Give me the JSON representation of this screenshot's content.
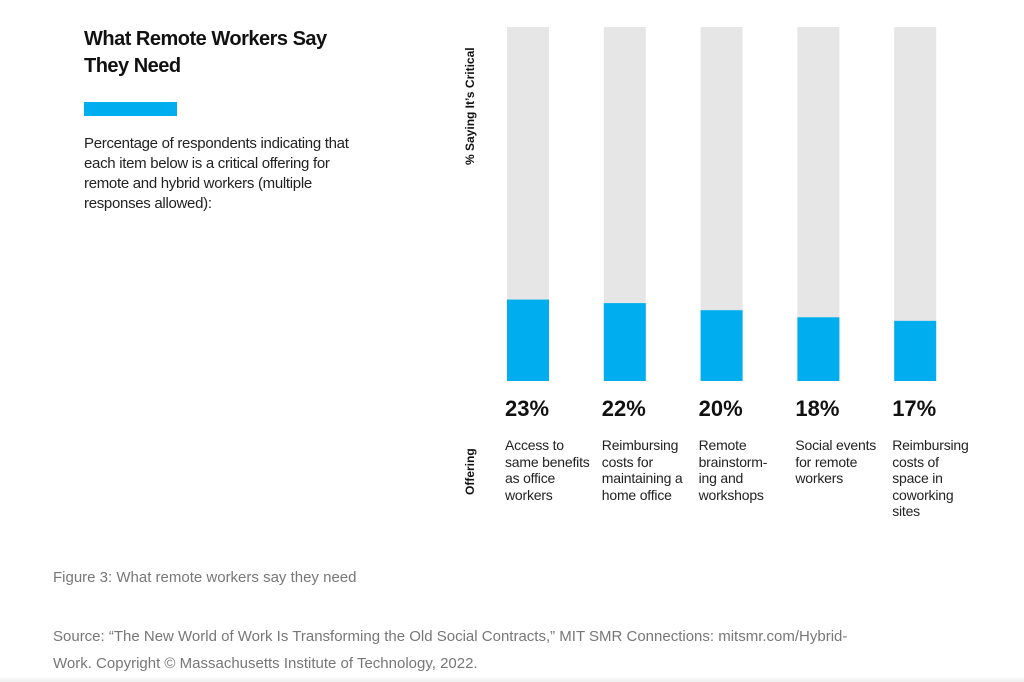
{
  "chart_data": {
    "type": "bar",
    "title": "What Remote Workers Say They Need",
    "subtitle": "Percentage of respondents indicating that each item below is a critical offering for remote and hybrid workers (multiple responses allowed):",
    "y_label": "% Saying It’s Critical",
    "x_label": "Offering",
    "categories": [
      "Access to same benefits as office workers",
      "Reimbursing costs for maintaining a home office",
      "Remote brainstorm-ing and workshops",
      "Social events for remote workers",
      "Reimbursing costs of space in coworking sites"
    ],
    "values": [
      23,
      22,
      20,
      18,
      17
    ],
    "value_labels": [
      "23%",
      "22%",
      "20%",
      "18%",
      "17%"
    ],
    "color": "#00aeef",
    "track_color": "#e6e6e7",
    "ylim": [
      0,
      100
    ]
  },
  "caption": "Figure 3: What remote workers say they need",
  "source": "Source: “The New World of Work Is Transforming the Old Social Contracts,” MIT SMR Connections: mitsmr.com/Hybrid-Work. Copyright © Massachusetts Institute of Technology, 2022."
}
